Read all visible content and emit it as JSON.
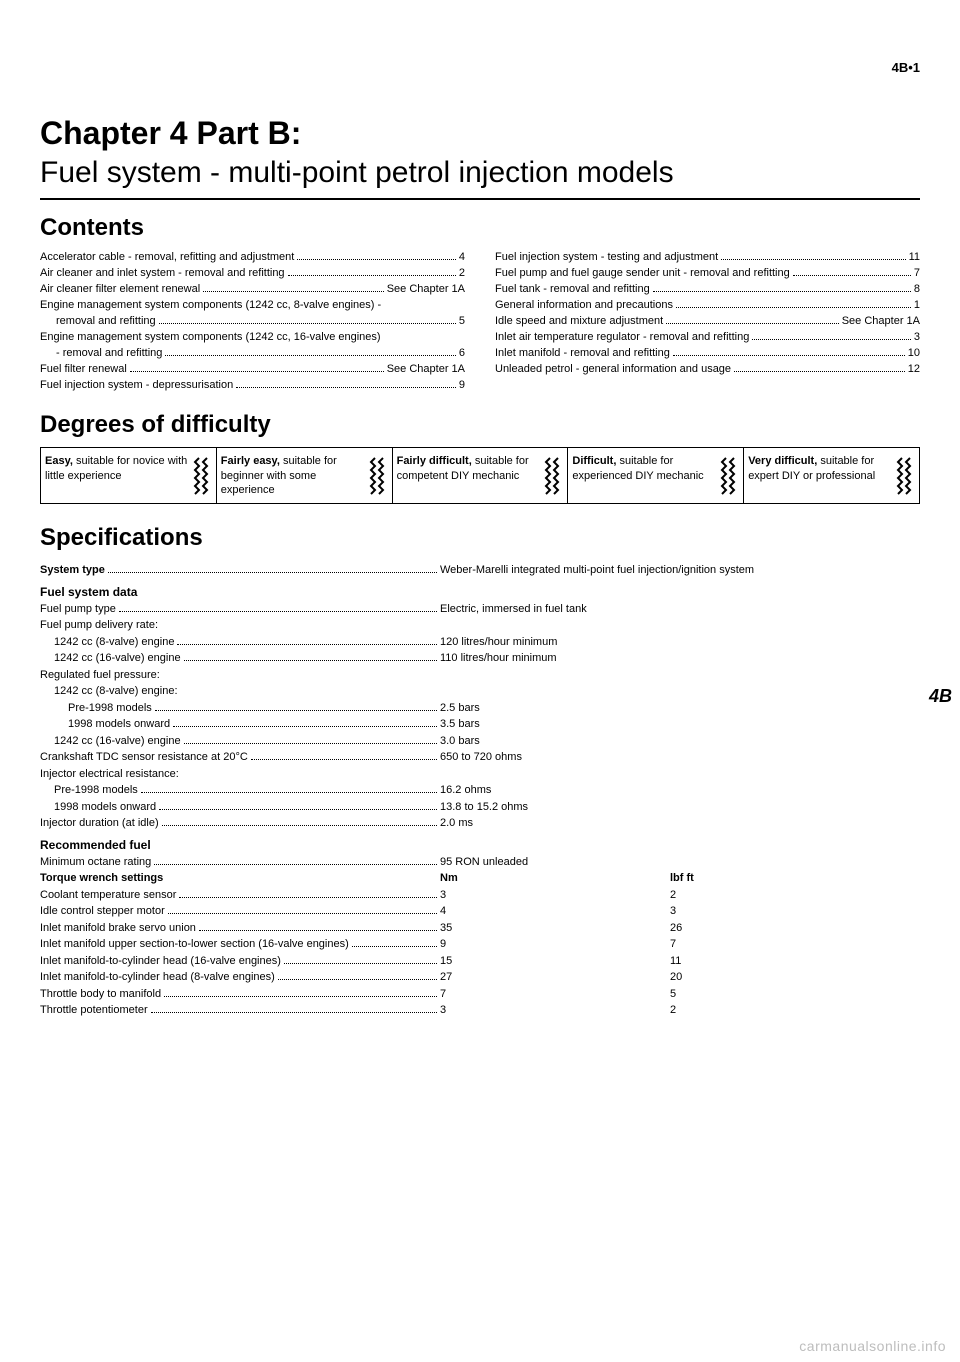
{
  "page_number": "4B•1",
  "chapter_title": "Chapter 4  Part B:",
  "chapter_subtitle": "Fuel system - multi-point petrol injection models",
  "contents_heading": "Contents",
  "difficulty_heading": "Degrees of difficulty",
  "specs_heading": "Specifications",
  "side_tab": "4B",
  "watermark": "carmanualsonline.info",
  "contents_left": [
    {
      "label": "Accelerator cable - removal, refitting and adjustment",
      "page": "4",
      "indent": false
    },
    {
      "label": "Air cleaner and inlet system - removal and refitting",
      "page": "2",
      "indent": false
    },
    {
      "label": "Air cleaner filter element renewal",
      "page": "See Chapter 1A",
      "indent": false
    },
    {
      "label": "Engine management system components (1242 cc, 8-valve engines) -",
      "page": "",
      "indent": false
    },
    {
      "label": "removal and refitting",
      "page": "5",
      "indent": true
    },
    {
      "label": "Engine management system components (1242 cc, 16-valve engines)",
      "page": "",
      "indent": false
    },
    {
      "label": "- removal and refitting",
      "page": "6",
      "indent": true
    },
    {
      "label": "Fuel filter renewal",
      "page": "See Chapter 1A",
      "indent": false
    },
    {
      "label": "Fuel injection system - depressurisation",
      "page": "9",
      "indent": false
    }
  ],
  "contents_right": [
    {
      "label": "Fuel injection system - testing and adjustment",
      "page": "11",
      "indent": false
    },
    {
      "label": "Fuel pump and fuel gauge sender unit - removal and refitting",
      "page": "7",
      "indent": false
    },
    {
      "label": "Fuel tank - removal and refitting",
      "page": "8",
      "indent": false
    },
    {
      "label": "General information and precautions",
      "page": "1",
      "indent": false
    },
    {
      "label": "Idle speed and mixture adjustment",
      "page": "See Chapter 1A",
      "indent": false
    },
    {
      "label": "Inlet air temperature regulator - removal and refitting",
      "page": "3",
      "indent": false
    },
    {
      "label": "Inlet manifold - removal and refitting",
      "page": "10",
      "indent": false
    },
    {
      "label": "Unleaded petrol - general information and usage",
      "page": "12",
      "indent": false
    }
  ],
  "difficulty": [
    {
      "bold": "Easy,",
      "rest": " suitable for novice with little experience"
    },
    {
      "bold": "Fairly easy,",
      "rest": " suitable for beginner with some experience"
    },
    {
      "bold": "Fairly difficult,",
      "rest": " suitable for competent DIY mechanic"
    },
    {
      "bold": "Difficult,",
      "rest": " suitable for experienced DIY mechanic"
    },
    {
      "bold": "Very difficult,",
      "rest": " suitable for expert DIY or professional"
    }
  ],
  "specs": {
    "system_type": {
      "label": "System type",
      "value": "Weber-Marelli integrated multi-point fuel injection/ignition system"
    },
    "fuel_system_heading": "Fuel system data",
    "fuel_rows": [
      {
        "label": "Fuel pump type",
        "v1": "Electric, immersed in fuel tank",
        "indent": 0,
        "dots": true
      },
      {
        "label": "Fuel pump delivery rate:",
        "v1": "",
        "indent": 0,
        "dots": false
      },
      {
        "label": "1242 cc (8-valve) engine",
        "v1": "120 litres/hour minimum",
        "indent": 1,
        "dots": true
      },
      {
        "label": "1242 cc (16-valve) engine",
        "v1": "110 litres/hour minimum",
        "indent": 1,
        "dots": true
      },
      {
        "label": "Regulated fuel pressure:",
        "v1": "",
        "indent": 0,
        "dots": false
      },
      {
        "label": "1242 cc (8-valve) engine:",
        "v1": "",
        "indent": 1,
        "dots": false
      },
      {
        "label": "Pre-1998 models",
        "v1": "2.5 bars",
        "indent": 2,
        "dots": true
      },
      {
        "label": "1998 models onward",
        "v1": "3.5 bars",
        "indent": 2,
        "dots": true
      },
      {
        "label": "1242 cc (16-valve) engine",
        "v1": "3.0 bars",
        "indent": 1,
        "dots": true
      },
      {
        "label": "Crankshaft TDC sensor resistance at 20°C",
        "v1": "650 to 720 ohms",
        "indent": 0,
        "dots": true
      },
      {
        "label": "Injector electrical resistance:",
        "v1": "",
        "indent": 0,
        "dots": false
      },
      {
        "label": "Pre-1998 models",
        "v1": "16.2 ohms",
        "indent": 1,
        "dots": true
      },
      {
        "label": "1998 models onward",
        "v1": "13.8 to 15.2 ohms",
        "indent": 1,
        "dots": true
      },
      {
        "label": "Injector duration (at idle)",
        "v1": "2.0 ms",
        "indent": 0,
        "dots": true
      }
    ],
    "rec_fuel_heading": "Recommended fuel",
    "rec_fuel_rows": [
      {
        "label": "Minimum octane rating",
        "v1": "95 RON unleaded",
        "indent": 0,
        "dots": true
      }
    ],
    "torque_heading": "Torque wrench settings",
    "torque_head": {
      "c1": "Nm",
      "c2": "lbf ft"
    },
    "torque_rows": [
      {
        "label": "Coolant temperature sensor",
        "v1": "3",
        "v2": "2"
      },
      {
        "label": "Idle control stepper motor",
        "v1": "4",
        "v2": "3"
      },
      {
        "label": "Inlet manifold brake servo union",
        "v1": "35",
        "v2": "26"
      },
      {
        "label": "Inlet manifold upper section-to-lower section (16-valve engines)",
        "v1": "9",
        "v2": "7"
      },
      {
        "label": "Inlet manifold-to-cylinder head (16-valve engines)",
        "v1": "15",
        "v2": "11"
      },
      {
        "label": "Inlet manifold-to-cylinder head (8-valve engines)",
        "v1": "27",
        "v2": "20"
      },
      {
        "label": "Throttle body to manifold",
        "v1": "7",
        "v2": "5"
      },
      {
        "label": "Throttle potentiometer",
        "v1": "3",
        "v2": "2"
      }
    ]
  }
}
